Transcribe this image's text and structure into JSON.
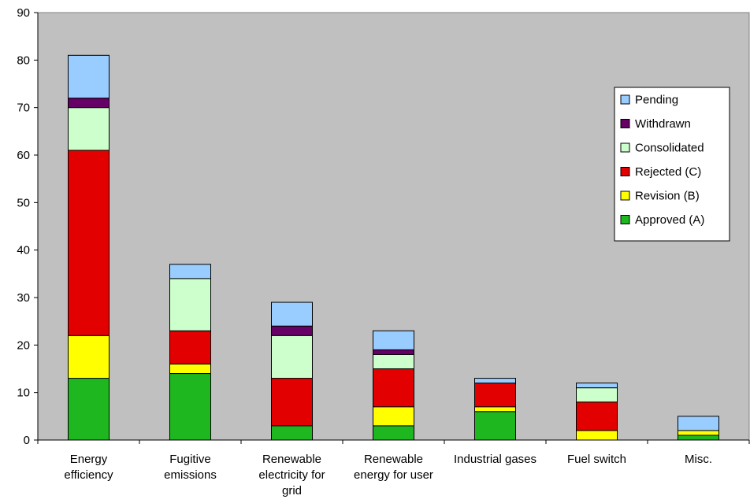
{
  "chart_data": {
    "type": "bar",
    "stacked": true,
    "title": "",
    "xlabel": "",
    "ylabel": "",
    "ylim": [
      0,
      90
    ],
    "yticks": [
      0,
      10,
      20,
      30,
      40,
      50,
      60,
      70,
      80,
      90
    ],
    "grid": false,
    "plot_background": "#c0c0c0",
    "legend_position": "right",
    "categories": [
      [
        "Energy",
        "efficiency"
      ],
      [
        "Fugitive",
        "emissions"
      ],
      [
        "Renewable",
        "electricity for",
        "grid"
      ],
      [
        "Renewable",
        "energy for user"
      ],
      [
        "Industrial gases"
      ],
      [
        "Fuel switch"
      ],
      [
        "Misc."
      ]
    ],
    "series": [
      {
        "name": "Approved (A)",
        "color": "#1fb71f",
        "values": [
          13,
          14,
          3,
          3,
          6,
          0,
          1
        ]
      },
      {
        "name": "Revision (B)",
        "color": "#ffff00",
        "values": [
          9,
          2,
          0,
          4,
          1,
          2,
          1
        ]
      },
      {
        "name": "Rejected (C)",
        "color": "#e30000",
        "values": [
          39,
          7,
          10,
          8,
          5,
          6,
          0
        ]
      },
      {
        "name": "Consolidated",
        "color": "#ccffcc",
        "values": [
          9,
          11,
          9,
          3,
          0,
          3,
          0
        ]
      },
      {
        "name": "Withdrawn",
        "color": "#660066",
        "values": [
          2,
          0,
          2,
          1,
          0,
          0,
          0
        ]
      },
      {
        "name": "Pending",
        "color": "#99ccff",
        "values": [
          9,
          3,
          5,
          4,
          1,
          1,
          3
        ]
      }
    ]
  }
}
